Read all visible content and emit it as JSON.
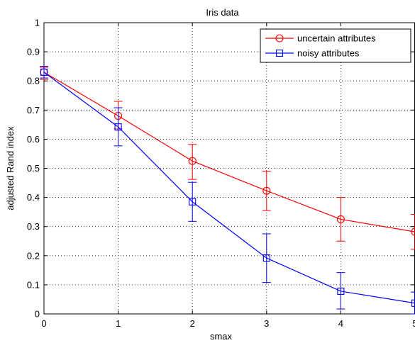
{
  "chart_data": {
    "type": "line",
    "title": "Iris data",
    "xlabel": "smax",
    "ylabel": "adjusted Rand index",
    "xlim": [
      0,
      5
    ],
    "ylim": [
      0,
      1
    ],
    "xticks": [
      "0",
      "1",
      "2",
      "3",
      "4",
      "5"
    ],
    "yticks": [
      "0",
      "0.1",
      "0.2",
      "0.3",
      "0.4",
      "0.5",
      "0.6",
      "0.7",
      "0.8",
      "0.9",
      "1"
    ],
    "grid": true,
    "legend_position": "top-right",
    "x": [
      0,
      1,
      2,
      3,
      4,
      5
    ],
    "series": [
      {
        "name": "uncertain attributes",
        "color": "#ff0000",
        "marker": "circle",
        "values": [
          0.83,
          0.68,
          0.525,
          0.423,
          0.325,
          0.282
        ],
        "err_low": [
          0.805,
          0.635,
          0.462,
          0.355,
          0.25,
          0.222
        ],
        "err_high": [
          0.847,
          0.73,
          0.582,
          0.49,
          0.4,
          0.342
        ]
      },
      {
        "name": "noisy attributes",
        "color": "#0000ff",
        "marker": "square",
        "values": [
          0.83,
          0.642,
          0.385,
          0.192,
          0.078,
          0.037
        ],
        "err_low": [
          0.81,
          0.577,
          0.318,
          0.108,
          0.017,
          0.0
        ],
        "err_high": [
          0.85,
          0.708,
          0.452,
          0.275,
          0.142,
          0.075
        ]
      }
    ]
  }
}
